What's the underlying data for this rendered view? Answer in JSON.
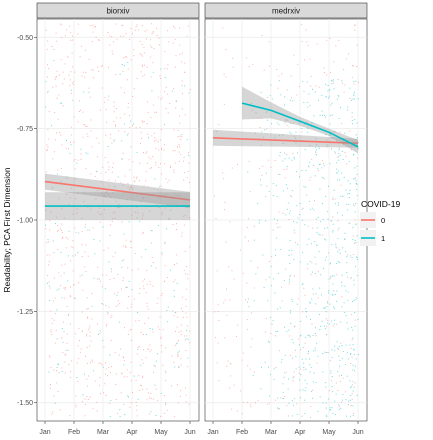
{
  "chart_data": {
    "type": "scatter",
    "ylabel": "Readability; PCA First Dimension",
    "xlabel": "",
    "x_ticks": [
      "Jan",
      "Feb",
      "Mar",
      "Apr",
      "May",
      "Jun"
    ],
    "ylim": [
      -1.55,
      -0.45
    ],
    "y_ticks": [
      -0.5,
      -0.75,
      -1.0,
      -1.25,
      -1.5
    ],
    "y_tick_labels": [
      "-0.50",
      "-0.75",
      "-1.00",
      "-1.25",
      "-1.50"
    ],
    "grid": true,
    "legend": {
      "title": "COVID-19",
      "position": "right",
      "entries": [
        {
          "label": "0",
          "color": "#F8766D"
        },
        {
          "label": "1",
          "color": "#00BFC4"
        }
      ]
    },
    "panels": [
      {
        "strip": "biorxiv",
        "series": [
          {
            "name": "0",
            "color": "#F8766D",
            "x": [
              0.0,
              5.0
            ],
            "y": [
              -0.895,
              -0.945
            ],
            "ci_half": [
              0.022,
              0.022
            ]
          },
          {
            "name": "1",
            "color": "#00BFC4",
            "x": [
              0.0,
              5.0
            ],
            "y": [
              -0.962,
              -0.962
            ],
            "ci_half": [
              0.038,
              0.038
            ]
          }
        ]
      },
      {
        "strip": "medrxiv",
        "series": [
          {
            "name": "0",
            "color": "#F8766D",
            "x": [
              0.0,
              5.0
            ],
            "y": [
              -0.775,
              -0.79
            ],
            "ci_half": [
              0.022,
              0.012
            ]
          },
          {
            "name": "1",
            "color": "#00BFC4",
            "x": [
              1.0,
              2.0,
              3.0,
              4.0,
              5.0
            ],
            "y": [
              -0.68,
              -0.7,
              -0.73,
              -0.76,
              -0.8
            ],
            "ci_half": [
              0.045,
              0.022,
              0.012,
              0.01,
              0.018
            ]
          }
        ]
      }
    ]
  }
}
